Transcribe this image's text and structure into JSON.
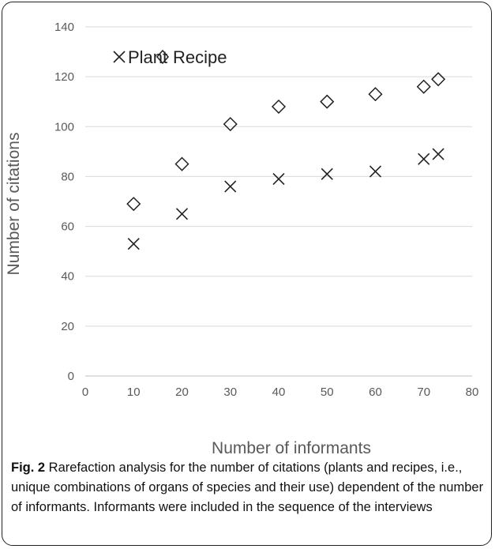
{
  "chart_data": {
    "type": "scatter",
    "xlabel": "Number of informants",
    "ylabel": "Number of citations",
    "xlim": [
      0,
      80
    ],
    "ylim": [
      0,
      140
    ],
    "x_ticks": [
      0,
      10,
      20,
      30,
      40,
      50,
      60,
      70,
      80
    ],
    "y_ticks": [
      0,
      20,
      40,
      60,
      80,
      100,
      120,
      140
    ],
    "grid": "horizontal",
    "legend_position": "top-left",
    "series": [
      {
        "name": "Plant",
        "marker": "x",
        "color": "#222222",
        "x": [
          10,
          20,
          30,
          40,
          50,
          60,
          70,
          73
        ],
        "y": [
          53,
          65,
          76,
          79,
          81,
          82,
          87,
          89
        ]
      },
      {
        "name": "Recipe",
        "marker": "diamond",
        "color": "#222222",
        "x": [
          10,
          20,
          30,
          40,
          50,
          60,
          70,
          73
        ],
        "y": [
          69,
          85,
          101,
          108,
          110,
          113,
          116,
          119
        ]
      }
    ]
  },
  "caption": {
    "label": "Fig. 2",
    "text": " Rarefaction analysis for the number of citations (plants and recipes, i.e., unique combinations of organs of species and their use) dependent of the number of informants. Informants were included in the sequence of the interviews"
  }
}
